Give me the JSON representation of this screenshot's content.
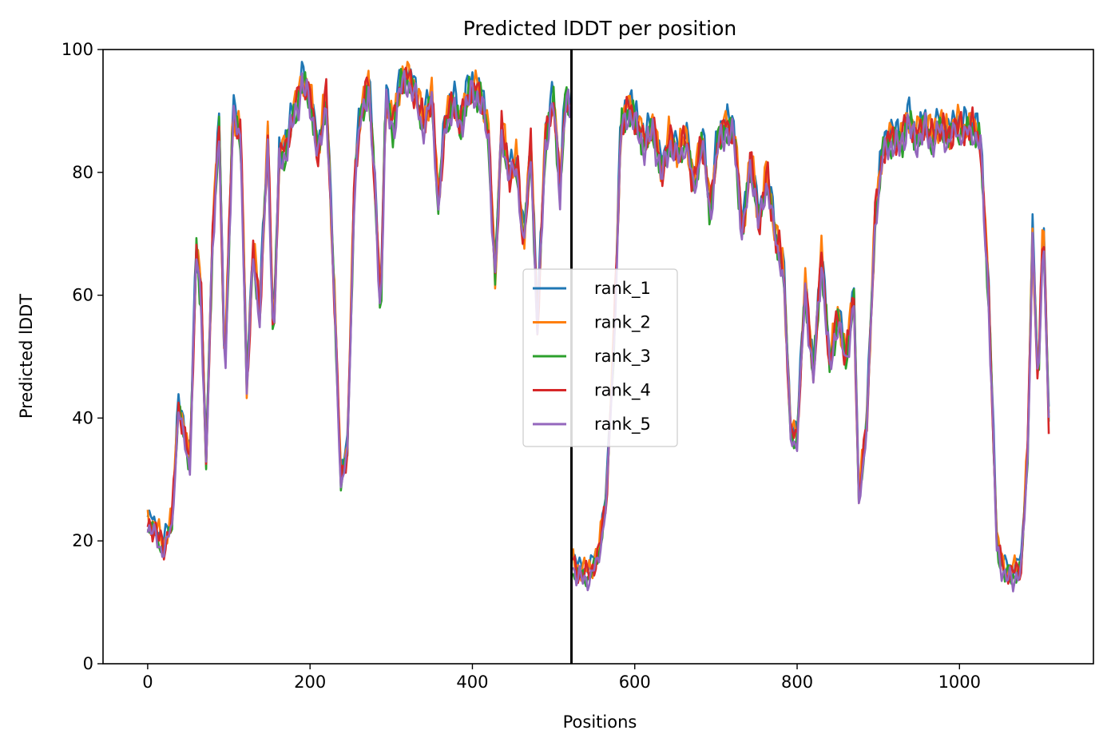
{
  "chart_data": {
    "type": "line",
    "title": "Predicted lDDT per position",
    "xlabel": "Positions",
    "ylabel": "Predicted lDDT",
    "xlim": [
      -55,
      1165
    ],
    "ylim": [
      0,
      100
    ],
    "xticks": [
      0,
      200,
      400,
      600,
      800,
      1000
    ],
    "yticks": [
      0,
      20,
      40,
      60,
      80,
      100
    ],
    "grid": false,
    "legend_position": "center",
    "vertical_line": {
      "x": 522,
      "color": "#000000"
    },
    "series": [
      {
        "name": "rank_1",
        "color": "#1f77b4",
        "offset": 0.9
      },
      {
        "name": "rank_2",
        "color": "#ff7f0e",
        "offset": 0.4
      },
      {
        "name": "rank_3",
        "color": "#2ca02c",
        "offset": -0.8
      },
      {
        "name": "rank_4",
        "color": "#d62728",
        "offset": -0.3
      },
      {
        "name": "rank_5",
        "color": "#9467bd",
        "offset": -1.2
      }
    ],
    "profile": [
      [
        0,
        23
      ],
      [
        10,
        22
      ],
      [
        20,
        19
      ],
      [
        30,
        24
      ],
      [
        38,
        42
      ],
      [
        45,
        38
      ],
      [
        52,
        33
      ],
      [
        60,
        68
      ],
      [
        66,
        60
      ],
      [
        72,
        33
      ],
      [
        80,
        70
      ],
      [
        88,
        88
      ],
      [
        95,
        47
      ],
      [
        105,
        90
      ],
      [
        115,
        86
      ],
      [
        122,
        45
      ],
      [
        130,
        68
      ],
      [
        138,
        57
      ],
      [
        148,
        86
      ],
      [
        155,
        52
      ],
      [
        162,
        83
      ],
      [
        170,
        84
      ],
      [
        180,
        90
      ],
      [
        190,
        95
      ],
      [
        200,
        93
      ],
      [
        210,
        83
      ],
      [
        220,
        93
      ],
      [
        230,
        60
      ],
      [
        238,
        30
      ],
      [
        246,
        35
      ],
      [
        255,
        80
      ],
      [
        263,
        90
      ],
      [
        272,
        95
      ],
      [
        280,
        78
      ],
      [
        287,
        57
      ],
      [
        293,
        92
      ],
      [
        302,
        88
      ],
      [
        312,
        95
      ],
      [
        320,
        96
      ],
      [
        330,
        93
      ],
      [
        340,
        88
      ],
      [
        350,
        93
      ],
      [
        358,
        75
      ],
      [
        366,
        88
      ],
      [
        376,
        92
      ],
      [
        384,
        88
      ],
      [
        392,
        92
      ],
      [
        400,
        94
      ],
      [
        410,
        93
      ],
      [
        420,
        86
      ],
      [
        428,
        63
      ],
      [
        436,
        88
      ],
      [
        445,
        80
      ],
      [
        455,
        82
      ],
      [
        463,
        68
      ],
      [
        472,
        85
      ],
      [
        480,
        55
      ],
      [
        490,
        86
      ],
      [
        500,
        92
      ],
      [
        508,
        78
      ],
      [
        515,
        93
      ],
      [
        521,
        90
      ],
      [
        523,
        17
      ],
      [
        530,
        15
      ],
      [
        545,
        15
      ],
      [
        555,
        18
      ],
      [
        565,
        27
      ],
      [
        575,
        55
      ],
      [
        583,
        88
      ],
      [
        593,
        91
      ],
      [
        603,
        88
      ],
      [
        613,
        85
      ],
      [
        623,
        88
      ],
      [
        633,
        80
      ],
      [
        643,
        86
      ],
      [
        653,
        83
      ],
      [
        663,
        86
      ],
      [
        673,
        78
      ],
      [
        683,
        86
      ],
      [
        693,
        74
      ],
      [
        703,
        86
      ],
      [
        713,
        88
      ],
      [
        723,
        86
      ],
      [
        733,
        70
      ],
      [
        743,
        83
      ],
      [
        753,
        72
      ],
      [
        763,
        80
      ],
      [
        773,
        70
      ],
      [
        783,
        65
      ],
      [
        792,
        38
      ],
      [
        800,
        37
      ],
      [
        810,
        62
      ],
      [
        820,
        47
      ],
      [
        830,
        67
      ],
      [
        840,
        49
      ],
      [
        850,
        57
      ],
      [
        860,
        50
      ],
      [
        870,
        60
      ],
      [
        876,
        27
      ],
      [
        886,
        40
      ],
      [
        896,
        73
      ],
      [
        906,
        84
      ],
      [
        916,
        86
      ],
      [
        926,
        85
      ],
      [
        936,
        89
      ],
      [
        946,
        86
      ],
      [
        956,
        88
      ],
      [
        966,
        86
      ],
      [
        976,
        88
      ],
      [
        986,
        86
      ],
      [
        996,
        88
      ],
      [
        1006,
        87
      ],
      [
        1016,
        88
      ],
      [
        1026,
        85
      ],
      [
        1036,
        60
      ],
      [
        1046,
        20
      ],
      [
        1056,
        15
      ],
      [
        1066,
        15
      ],
      [
        1076,
        16
      ],
      [
        1084,
        35
      ],
      [
        1090,
        70
      ],
      [
        1097,
        45
      ],
      [
        1103,
        73
      ],
      [
        1110,
        40
      ]
    ]
  }
}
